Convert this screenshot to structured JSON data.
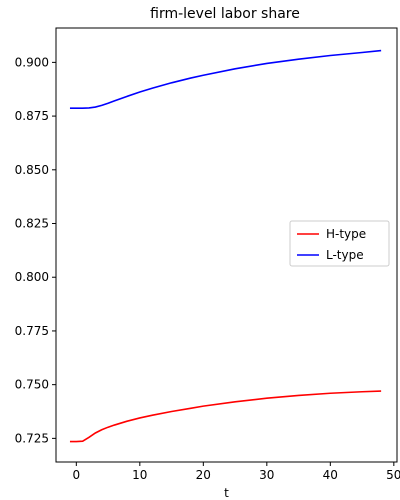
{
  "chart_data": {
    "type": "line",
    "title": "firm-level labor share",
    "xlabel": "t",
    "ylabel": "",
    "xlim": [
      -3.2,
      50.5
    ],
    "ylim": [
      0.714,
      0.916
    ],
    "xticks": [
      0,
      10,
      20,
      30,
      40,
      50
    ],
    "yticks": [
      0.725,
      0.75,
      0.775,
      0.8,
      0.825,
      0.85,
      0.875,
      0.9
    ],
    "ytick_labels": [
      "0.725",
      "0.750",
      "0.775",
      "0.800",
      "0.825",
      "0.850",
      "0.875",
      "0.900"
    ],
    "grid": false,
    "legend_position": "center-right",
    "series": [
      {
        "name": "H-type",
        "color": "#ff0000",
        "x": [
          -1,
          0,
          1,
          2,
          3,
          4,
          5,
          6,
          8,
          10,
          12,
          15,
          18,
          20,
          25,
          30,
          35,
          40,
          45,
          48
        ],
        "y": [
          0.7235,
          0.7235,
          0.7237,
          0.7255,
          0.7275,
          0.729,
          0.7302,
          0.7312,
          0.733,
          0.7345,
          0.7358,
          0.7375,
          0.739,
          0.74,
          0.742,
          0.7437,
          0.745,
          0.746,
          0.7467,
          0.747
        ]
      },
      {
        "name": "L-type",
        "color": "#0000ff",
        "x": [
          -1,
          0,
          1,
          2,
          3,
          4,
          5,
          6,
          8,
          10,
          12,
          15,
          18,
          20,
          25,
          30,
          35,
          40,
          45,
          48
        ],
        "y": [
          0.8787,
          0.8787,
          0.8787,
          0.8788,
          0.8792,
          0.88,
          0.881,
          0.8821,
          0.8842,
          0.8862,
          0.888,
          0.8905,
          0.8927,
          0.894,
          0.897,
          0.8995,
          0.9015,
          0.9032,
          0.9046,
          0.9055
        ]
      }
    ]
  }
}
